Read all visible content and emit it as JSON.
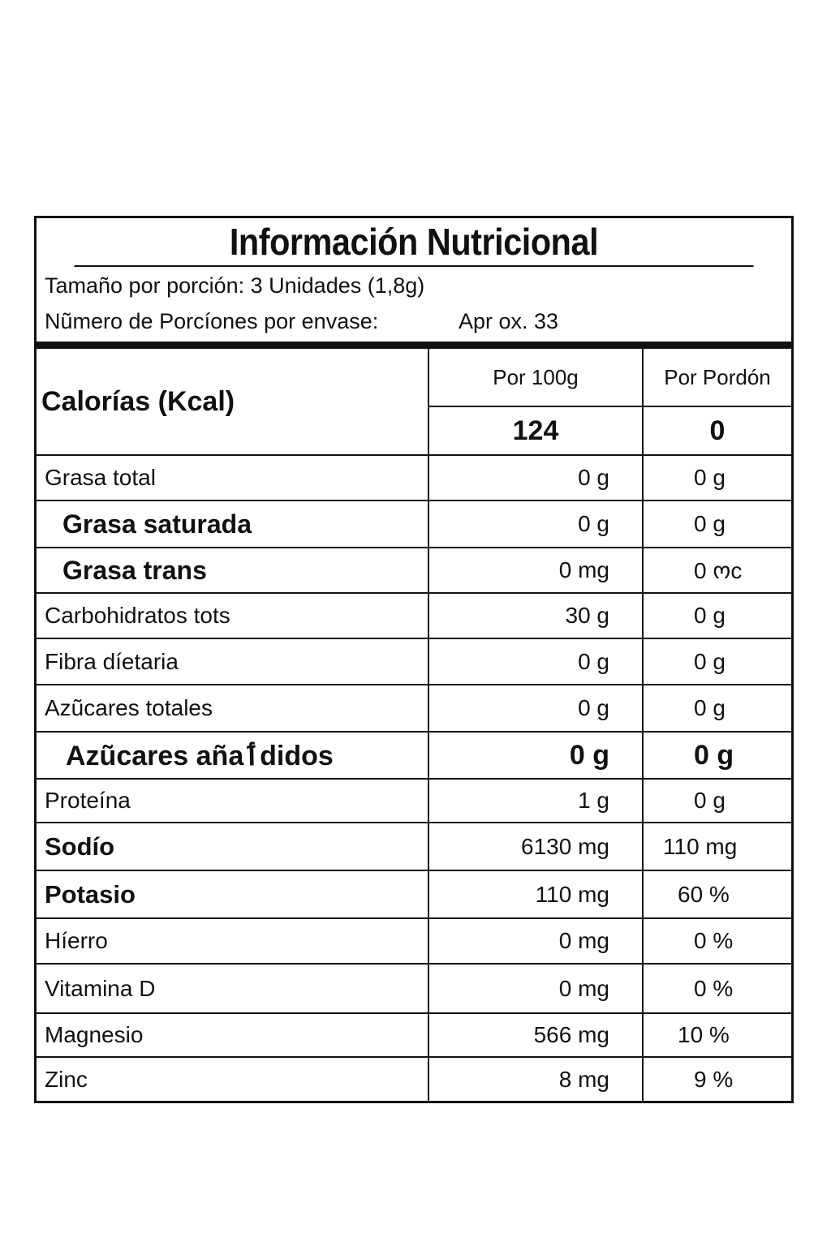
{
  "label": {
    "title": "Información Nutricional",
    "serving_size": "Tamaño por porción: 3 Unidades (1,8g)",
    "servings_label": "Nũmero de Porcíones por envase:",
    "servings_value": "Apr ox. 33"
  },
  "calories": {
    "label": "Calorías (Kcal)",
    "col_per100_header": "Por 100g",
    "col_serving_header": "Por Pordón",
    "per100": "124",
    "per_serving": "0"
  },
  "nutrients": [
    {
      "name": "Grasa total",
      "per100": "0 g",
      "per_serving": "0 g"
    },
    {
      "name": "Grasa saturada",
      "per100": "0 g",
      "per_serving": "0 g"
    },
    {
      "name": "Grasa trans",
      "per100": "0 mg",
      "per_serving": "0 ოc"
    },
    {
      "name": "Carbohidratos tots",
      "per100": "30 g",
      "per_serving": "0 g"
    },
    {
      "name": "Fibra díetaria",
      "per100": "0 g",
      "per_serving": "0 g"
    },
    {
      "name": "Azũcares totales",
      "per100": "0 g",
      "per_serving": "0 g"
    },
    {
      "name": "Azũcares añaٲdidos",
      "per100": "0 g",
      "per_serving": "0 g"
    },
    {
      "name": "Proteína",
      "per100": "1 g",
      "per_serving": "0 g"
    },
    {
      "name": "Sodío",
      "per100": "6130 mg",
      "per_serving": "110 mg"
    },
    {
      "name": "Potasio",
      "per100": "110 mg",
      "per_serving": "60 %"
    },
    {
      "name": "Híerro",
      "per100": "0 mg",
      "per_serving": "0 %"
    },
    {
      "name": "Vitamina D",
      "per100": "0 mg",
      "per_serving": "0 %"
    },
    {
      "name": "Magnesio",
      "per100": "566 mg",
      "per_serving": "10 %"
    },
    {
      "name": "Zinc",
      "per100": "8 mg",
      "per_serving": "9 %"
    }
  ]
}
